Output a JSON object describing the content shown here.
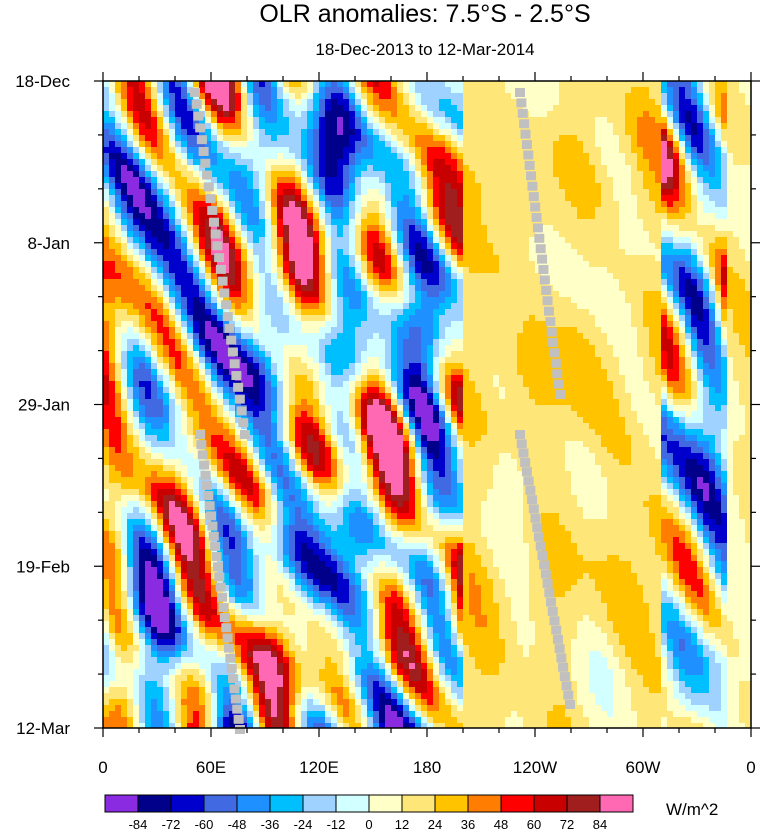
{
  "chart_data": {
    "type": "heatmap",
    "title": "OLR anomalies: 7.5°S - 2.5°S",
    "subtitle": "18-Dec-2013 to 12-Mar-2014",
    "x_ticks": [
      {
        "lon": 0,
        "label": "0"
      },
      {
        "lon": 60,
        "label": "60E"
      },
      {
        "lon": 120,
        "label": "120E"
      },
      {
        "lon": 180,
        "label": "180"
      },
      {
        "lon": 240,
        "label": "120W"
      },
      {
        "lon": 300,
        "label": "60W"
      },
      {
        "lon": 360,
        "label": "0"
      }
    ],
    "y_ticks": [
      {
        "day": 0,
        "label": "18-Dec"
      },
      {
        "day": 21,
        "label": "8-Jan"
      },
      {
        "day": 42,
        "label": "29-Jan"
      },
      {
        "day": 63,
        "label": "19-Feb"
      },
      {
        "day": 84,
        "label": "12-Mar"
      }
    ],
    "x_range": [
      0,
      360
    ],
    "y_range_days": [
      0,
      84
    ],
    "colorbar": {
      "units": "W/m^2",
      "levels": [
        "-84",
        "-72",
        "-60",
        "-48",
        "-36",
        "-24",
        "-12",
        "0",
        "12",
        "24",
        "36",
        "48",
        "60",
        "72",
        "84"
      ],
      "colors": [
        "#8a2be2",
        "#00008b",
        "#0000cd",
        "#4169e1",
        "#1e90ff",
        "#00bfff",
        "#a0d2ff",
        "#d2ffff",
        "#ffffc8",
        "#ffe678",
        "#ffc300",
        "#ff7d00",
        "#ff0000",
        "#c80000",
        "#a01e1e",
        "#ff69b4"
      ]
    },
    "missing_color": "#c0c0c0"
  }
}
